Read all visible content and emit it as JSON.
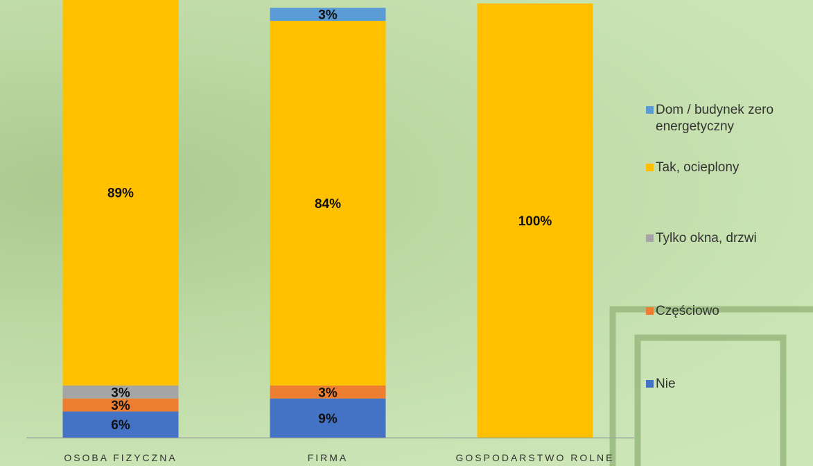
{
  "chart_data": {
    "type": "stacked-bar",
    "categories": [
      "OSOBA FIZYCZNA",
      "FIRMA",
      "GOSPODARSTWO ROLNE"
    ],
    "series": [
      {
        "name": "Nie",
        "color": "#4472c4",
        "values": [
          6,
          9,
          null
        ],
        "value_labels": [
          "6%",
          "9%",
          null
        ]
      },
      {
        "name": "Częściowo",
        "color": "#ed7d31",
        "values": [
          3,
          3,
          null
        ],
        "value_labels": [
          "3%",
          "3%",
          null
        ]
      },
      {
        "name": "Tylko okna, drzwi",
        "color": "#a5a5a5",
        "values": [
          3,
          null,
          null
        ],
        "value_labels": [
          "3%",
          null,
          null
        ]
      },
      {
        "name": "Tak, ocieplony",
        "color": "#ffc000",
        "values": [
          89,
          84,
          100
        ],
        "value_labels": [
          "89%",
          "84%",
          "100%"
        ]
      },
      {
        "name": "Dom / budynek zero energetyczny",
        "color": "#5b9bd5",
        "values": [
          null,
          3,
          null
        ],
        "value_labels": [
          null,
          "3%",
          null
        ]
      }
    ],
    "ylim": [
      0,
      100
    ]
  }
}
